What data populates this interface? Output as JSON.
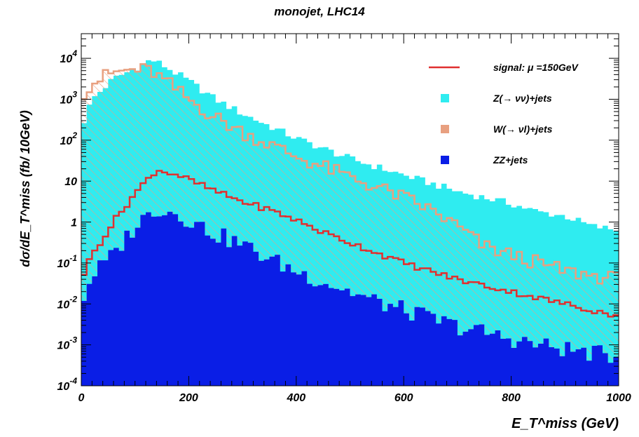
{
  "chart_data": {
    "type": "histogram",
    "title": "monojet, LHC14",
    "xlabel": "E_T^miss (GeV)",
    "ylabel": "dσ/dE_T^miss (fb/ 10GeV)",
    "x_range": [
      0,
      1000
    ],
    "y_range": [
      0.0001,
      40000
    ],
    "y_scale": "log",
    "bin_width": 10,
    "x_ticks": [
      {
        "value": 0,
        "label": "0"
      },
      {
        "value": 200,
        "label": "200"
      },
      {
        "value": 400,
        "label": "400"
      },
      {
        "value": 600,
        "label": "600"
      },
      {
        "value": 800,
        "label": "800"
      },
      {
        "value": 1000,
        "label": "1000"
      }
    ],
    "y_ticks": [
      {
        "value": 10000,
        "base": "10",
        "exp": "4"
      },
      {
        "value": 1000,
        "base": "10",
        "exp": "3"
      },
      {
        "value": 100,
        "base": "10",
        "exp": "2"
      },
      {
        "value": 10,
        "base": "10",
        "exp": ""
      },
      {
        "value": 1,
        "base": "1",
        "exp": ""
      },
      {
        "value": 0.1,
        "base": "10",
        "exp": "-1"
      },
      {
        "value": 0.01,
        "base": "10",
        "exp": "-2"
      },
      {
        "value": 0.001,
        "base": "10",
        "exp": "-3"
      },
      {
        "value": 0.0001,
        "base": "10",
        "exp": "-4"
      }
    ],
    "legend": {
      "position": "top-right",
      "entries": [
        {
          "label": "signal: μ =150GeV",
          "type": "line",
          "color": "#e03030"
        },
        {
          "label": "Z(→ νν)+jets",
          "type": "box",
          "color": "#2fecf0"
        },
        {
          "label": "W(→ νl)+jets",
          "type": "box",
          "color": "#e8a080"
        },
        {
          "label": "ZZ+jets",
          "type": "box",
          "color": "#0a1ee6"
        }
      ]
    },
    "series": [
      {
        "name": "Z(→ νν)+jets",
        "color": "#2fecf0",
        "style": "filled",
        "log10_knots": [
          [
            0,
            2.3
          ],
          [
            20,
            3.0
          ],
          [
            60,
            3.5
          ],
          [
            100,
            3.75
          ],
          [
            130,
            3.97
          ],
          [
            150,
            3.85
          ],
          [
            200,
            3.45
          ],
          [
            250,
            3.0
          ],
          [
            300,
            2.65
          ],
          [
            350,
            2.35
          ],
          [
            400,
            2.05
          ],
          [
            450,
            1.8
          ],
          [
            500,
            1.55
          ],
          [
            550,
            1.35
          ],
          [
            600,
            1.15
          ],
          [
            650,
            0.95
          ],
          [
            700,
            0.75
          ],
          [
            750,
            0.6
          ],
          [
            800,
            0.45
          ],
          [
            850,
            0.25
          ],
          [
            900,
            0.15
          ],
          [
            950,
            -0.1
          ],
          [
            1000,
            -0.2
          ]
        ],
        "noise": 0.09
      },
      {
        "name": "W(→ νl)+jets",
        "color": "#e8a080",
        "style": "hatched-outline",
        "log10_knots": [
          [
            0,
            3.1
          ],
          [
            20,
            3.4
          ],
          [
            60,
            3.65
          ],
          [
            100,
            3.72
          ],
          [
            130,
            3.7
          ],
          [
            150,
            3.5
          ],
          [
            200,
            3.0
          ],
          [
            250,
            2.55
          ],
          [
            300,
            2.2
          ],
          [
            350,
            1.9
          ],
          [
            400,
            1.6
          ],
          [
            450,
            1.35
          ],
          [
            500,
            1.1
          ],
          [
            550,
            0.85
          ],
          [
            600,
            0.6
          ],
          [
            650,
            0.3
          ],
          [
            700,
            -0.1
          ],
          [
            750,
            -0.6
          ],
          [
            800,
            -0.8
          ],
          [
            850,
            -1.0
          ],
          [
            900,
            -1.2
          ],
          [
            950,
            -1.3
          ],
          [
            1000,
            -1.4
          ]
        ],
        "noise": 0.18
      },
      {
        "name": "ZZ+jets",
        "color": "#0a1ee6",
        "style": "filled",
        "log10_knots": [
          [
            0,
            -2.0
          ],
          [
            20,
            -1.3
          ],
          [
            60,
            -0.8
          ],
          [
            100,
            -0.1
          ],
          [
            140,
            0.35
          ],
          [
            180,
            0.2
          ],
          [
            250,
            -0.3
          ],
          [
            300,
            -0.55
          ],
          [
            350,
            -0.9
          ],
          [
            400,
            -1.2
          ],
          [
            450,
            -1.45
          ],
          [
            500,
            -1.7
          ],
          [
            550,
            -1.95
          ],
          [
            600,
            -2.15
          ],
          [
            650,
            -2.35
          ],
          [
            700,
            -2.55
          ],
          [
            750,
            -2.7
          ],
          [
            800,
            -2.85
          ],
          [
            850,
            -3.0
          ],
          [
            900,
            -3.1
          ],
          [
            950,
            -3.2
          ],
          [
            1000,
            -3.3
          ]
        ],
        "noise": 0.22
      },
      {
        "name": "signal: μ =150GeV",
        "color": "#e03030",
        "style": "step-line",
        "log10_knots": [
          [
            0,
            -1.4
          ],
          [
            20,
            -0.8
          ],
          [
            60,
            0.0
          ],
          [
            100,
            0.7
          ],
          [
            140,
            1.28
          ],
          [
            180,
            1.15
          ],
          [
            250,
            0.75
          ],
          [
            300,
            0.5
          ],
          [
            350,
            0.3
          ],
          [
            400,
            0.05
          ],
          [
            450,
            -0.25
          ],
          [
            500,
            -0.5
          ],
          [
            550,
            -0.75
          ],
          [
            600,
            -1.0
          ],
          [
            650,
            -1.2
          ],
          [
            700,
            -1.4
          ],
          [
            750,
            -1.55
          ],
          [
            800,
            -1.7
          ],
          [
            850,
            -1.85
          ],
          [
            900,
            -2.0
          ],
          [
            950,
            -2.15
          ],
          [
            1000,
            -2.3
          ]
        ],
        "noise": 0.07
      }
    ]
  }
}
